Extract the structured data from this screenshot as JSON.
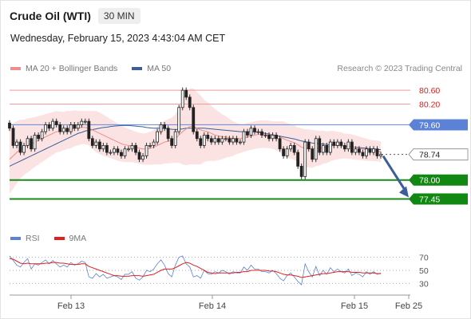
{
  "header": {
    "instrument": "Crude Oil (WTI)",
    "timeframe": "30 MIN",
    "datetime": "Wednesday, February 15, 2023 4:43:04 AM CET"
  },
  "legend": {
    "ma20": {
      "label": "MA 20 + Bollinger Bands",
      "color": "#f08c8c"
    },
    "ma50": {
      "label": "MA 50",
      "color": "#3a5f9a"
    }
  },
  "credit": "Research © 2023 Trading Central",
  "indicator_legend": {
    "rsi": {
      "label": "RSI",
      "color": "#5b82d6"
    },
    "ma9": {
      "label": "9MA",
      "color": "#e02020"
    }
  },
  "chart_data": {
    "type": "candlestick",
    "xaxis_ticks": [
      "Feb 13",
      "Feb 14",
      "Feb 15",
      "Feb 25"
    ],
    "price_range": [
      76.7,
      80.95
    ],
    "levels": [
      {
        "label": "80.60",
        "value": 80.6,
        "role": "resistance"
      },
      {
        "label": "80.20",
        "value": 80.2,
        "role": "resistance"
      },
      {
        "label": "79.60",
        "value": 79.6,
        "role": "pivot"
      },
      {
        "label": "78.74",
        "value": 78.74,
        "role": "last"
      },
      {
        "label": "78.00",
        "value": 78.0,
        "role": "support"
      },
      {
        "label": "77.45",
        "value": 77.45,
        "role": "support"
      }
    ],
    "close": [
      79.5,
      79.0,
      79.1,
      78.8,
      79.0,
      79.2,
      78.9,
      79.3,
      79.2,
      79.4,
      79.6,
      79.5,
      79.7,
      79.6,
      79.4,
      79.5,
      79.4,
      79.6,
      79.5,
      79.6,
      79.7,
      79.7,
      79.2,
      79.0,
      79.1,
      78.9,
      79.0,
      78.8,
      78.8,
      78.9,
      78.8,
      78.7,
      78.9,
      78.9,
      79.0,
      78.8,
      78.6,
      78.7,
      79.0,
      79.0,
      79.1,
      79.4,
      79.6,
      79.5,
      79.2,
      79.0,
      79.4,
      80.1,
      80.6,
      80.4,
      80.1,
      79.4,
      79.2,
      79.0,
      79.3,
      79.2,
      79.1,
      79.2,
      79.1,
      79.2,
      79.2,
      79.1,
      79.2,
      79.1,
      79.1,
      79.4,
      79.3,
      79.5,
      79.4,
      79.4,
      79.3,
      79.3,
      79.2,
      79.3,
      79.2,
      78.9,
      78.7,
      78.9,
      79.0,
      78.8,
      78.4,
      78.1,
      79.1,
      78.9,
      78.6,
      79.2,
      78.8,
      79.0,
      78.8,
      79.1,
      79.0,
      79.1,
      79.0,
      78.9,
      79.1,
      78.8,
      78.9,
      78.8,
      78.7,
      78.9,
      78.8,
      78.9,
      78.7,
      78.74
    ],
    "ma20": [
      78.6,
      78.7,
      78.8,
      78.9,
      78.95,
      79.0,
      79.05,
      79.1,
      79.15,
      79.2,
      79.25,
      79.3,
      79.35,
      79.4,
      79.4,
      79.42,
      79.45,
      79.46,
      79.5,
      79.5,
      79.52,
      79.52,
      79.5,
      79.45,
      79.4,
      79.35,
      79.3,
      79.25,
      79.2,
      79.15,
      79.1,
      79.05,
      79.02,
      79.0,
      78.98,
      78.95,
      78.92,
      78.9,
      78.9,
      78.92,
      78.95,
      79.0,
      79.05,
      79.1,
      79.12,
      79.15,
      79.2,
      79.3,
      79.4,
      79.48,
      79.55,
      79.55,
      79.5,
      79.45,
      79.42,
      79.4,
      79.35,
      79.3,
      79.28,
      79.25,
      79.25,
      79.22,
      79.2,
      79.2,
      79.2,
      79.22,
      79.25,
      79.27,
      79.3,
      79.32,
      79.33,
      79.33,
      79.32,
      79.3,
      79.28,
      79.25,
      79.2,
      79.15,
      79.12,
      79.08,
      79.02,
      78.95,
      78.92,
      78.92,
      78.9,
      78.92,
      78.92,
      78.95,
      78.95,
      78.98,
      79.0,
      79.0,
      79.0,
      78.98,
      78.98,
      78.96,
      78.94,
      78.92,
      78.9,
      78.88,
      78.86,
      78.85,
      78.84,
      78.82
    ],
    "ma50": [
      78.4,
      78.45,
      78.5,
      78.55,
      78.6,
      78.65,
      78.7,
      78.75,
      78.8,
      78.85,
      78.9,
      78.95,
      79.0,
      79.05,
      79.1,
      79.15,
      79.2,
      79.25,
      79.3,
      79.35,
      79.38,
      79.42,
      79.44,
      79.46,
      79.48,
      79.5,
      79.52,
      79.53,
      79.55,
      79.56,
      79.57,
      79.58,
      79.58,
      79.58,
      79.57,
      79.56,
      79.55,
      79.54,
      79.52,
      79.51,
      79.5,
      79.5,
      79.5,
      79.49,
      79.48,
      79.47,
      79.46,
      79.47,
      79.48,
      79.5,
      79.5,
      79.5,
      79.5,
      79.5,
      79.5,
      79.49,
      79.48,
      79.47,
      79.46,
      79.45,
      79.44,
      79.43,
      79.42,
      79.41,
      79.4,
      79.4,
      79.4,
      79.4,
      79.39,
      79.38,
      79.37,
      79.35,
      79.33,
      79.31,
      79.29,
      79.27,
      79.25,
      79.23,
      79.21,
      79.19,
      79.16,
      79.13,
      79.11,
      79.09,
      79.07,
      79.06,
      79.05,
      79.04,
      79.03,
      79.02,
      79.01,
      79.0,
      78.99,
      78.98,
      78.97,
      78.96,
      78.95,
      78.94,
      78.93,
      78.92,
      78.91,
      78.9,
      78.89,
      78.88
    ],
    "bollinger_width": [
      1.0,
      0.95,
      0.9,
      0.85,
      0.8,
      0.78,
      0.75,
      0.72,
      0.7,
      0.68,
      0.66,
      0.64,
      0.62,
      0.6,
      0.58,
      0.56,
      0.55,
      0.54,
      0.52,
      0.5,
      0.48,
      0.48,
      0.5,
      0.55,
      0.6,
      0.6,
      0.6,
      0.58,
      0.56,
      0.55,
      0.54,
      0.52,
      0.5,
      0.48,
      0.46,
      0.45,
      0.45,
      0.45,
      0.46,
      0.48,
      0.5,
      0.55,
      0.6,
      0.62,
      0.64,
      0.66,
      0.7,
      0.8,
      0.95,
      1.05,
      1.1,
      1.1,
      1.05,
      1.0,
      0.9,
      0.85,
      0.8,
      0.75,
      0.7,
      0.65,
      0.6,
      0.55,
      0.5,
      0.45,
      0.42,
      0.4,
      0.4,
      0.4,
      0.4,
      0.4,
      0.4,
      0.4,
      0.4,
      0.4,
      0.42,
      0.45,
      0.5,
      0.5,
      0.5,
      0.5,
      0.5,
      0.55,
      0.55,
      0.55,
      0.55,
      0.52,
      0.5,
      0.48,
      0.46,
      0.44,
      0.42,
      0.4,
      0.38,
      0.36,
      0.36,
      0.36,
      0.35,
      0.34,
      0.33,
      0.32,
      0.31,
      0.3,
      0.3,
      0.3
    ],
    "rsi": {
      "ticks": [
        70,
        50,
        30
      ],
      "range": [
        22,
        78
      ],
      "rsi_values": [
        72,
        65,
        58,
        55,
        62,
        68,
        52,
        60,
        58,
        62,
        66,
        60,
        65,
        60,
        55,
        58,
        55,
        62,
        58,
        60,
        64,
        62,
        40,
        38,
        45,
        40,
        44,
        38,
        40,
        42,
        40,
        36,
        44,
        44,
        48,
        38,
        35,
        40,
        50,
        48,
        52,
        60,
        66,
        58,
        45,
        40,
        58,
        70,
        72,
        60,
        55,
        40,
        42,
        38,
        50,
        45,
        44,
        48,
        46,
        50,
        48,
        44,
        48,
        46,
        46,
        55,
        50,
        58,
        52,
        52,
        48,
        48,
        46,
        50,
        45,
        38,
        34,
        42,
        46,
        40,
        33,
        28,
        60,
        48,
        40,
        56,
        42,
        50,
        44,
        54,
        48,
        52,
        48,
        46,
        52,
        42,
        46,
        44,
        40,
        48,
        44,
        48,
        44,
        46
      ],
      "ma9_values": [
        68,
        67,
        64,
        61,
        60,
        61,
        60,
        60,
        60,
        60,
        61,
        61,
        62,
        62,
        61,
        61,
        60,
        59,
        59,
        59,
        60,
        60,
        56,
        54,
        52,
        50,
        48,
        46,
        44,
        42,
        42,
        41,
        41,
        41,
        42,
        42,
        42,
        41,
        42,
        43,
        44,
        47,
        50,
        52,
        52,
        52,
        54,
        57,
        60,
        62,
        61,
        58,
        56,
        53,
        50,
        47,
        46,
        45,
        46,
        46,
        46,
        46,
        46,
        47,
        47,
        48,
        48,
        50,
        50,
        50,
        50,
        50,
        49,
        49,
        48,
        46,
        44,
        43,
        43,
        42,
        41,
        39,
        40,
        41,
        42,
        43,
        44,
        45,
        45,
        46,
        47,
        48,
        48,
        48,
        48,
        47,
        47,
        47,
        46,
        46,
        46,
        46,
        45,
        45
      ]
    }
  }
}
